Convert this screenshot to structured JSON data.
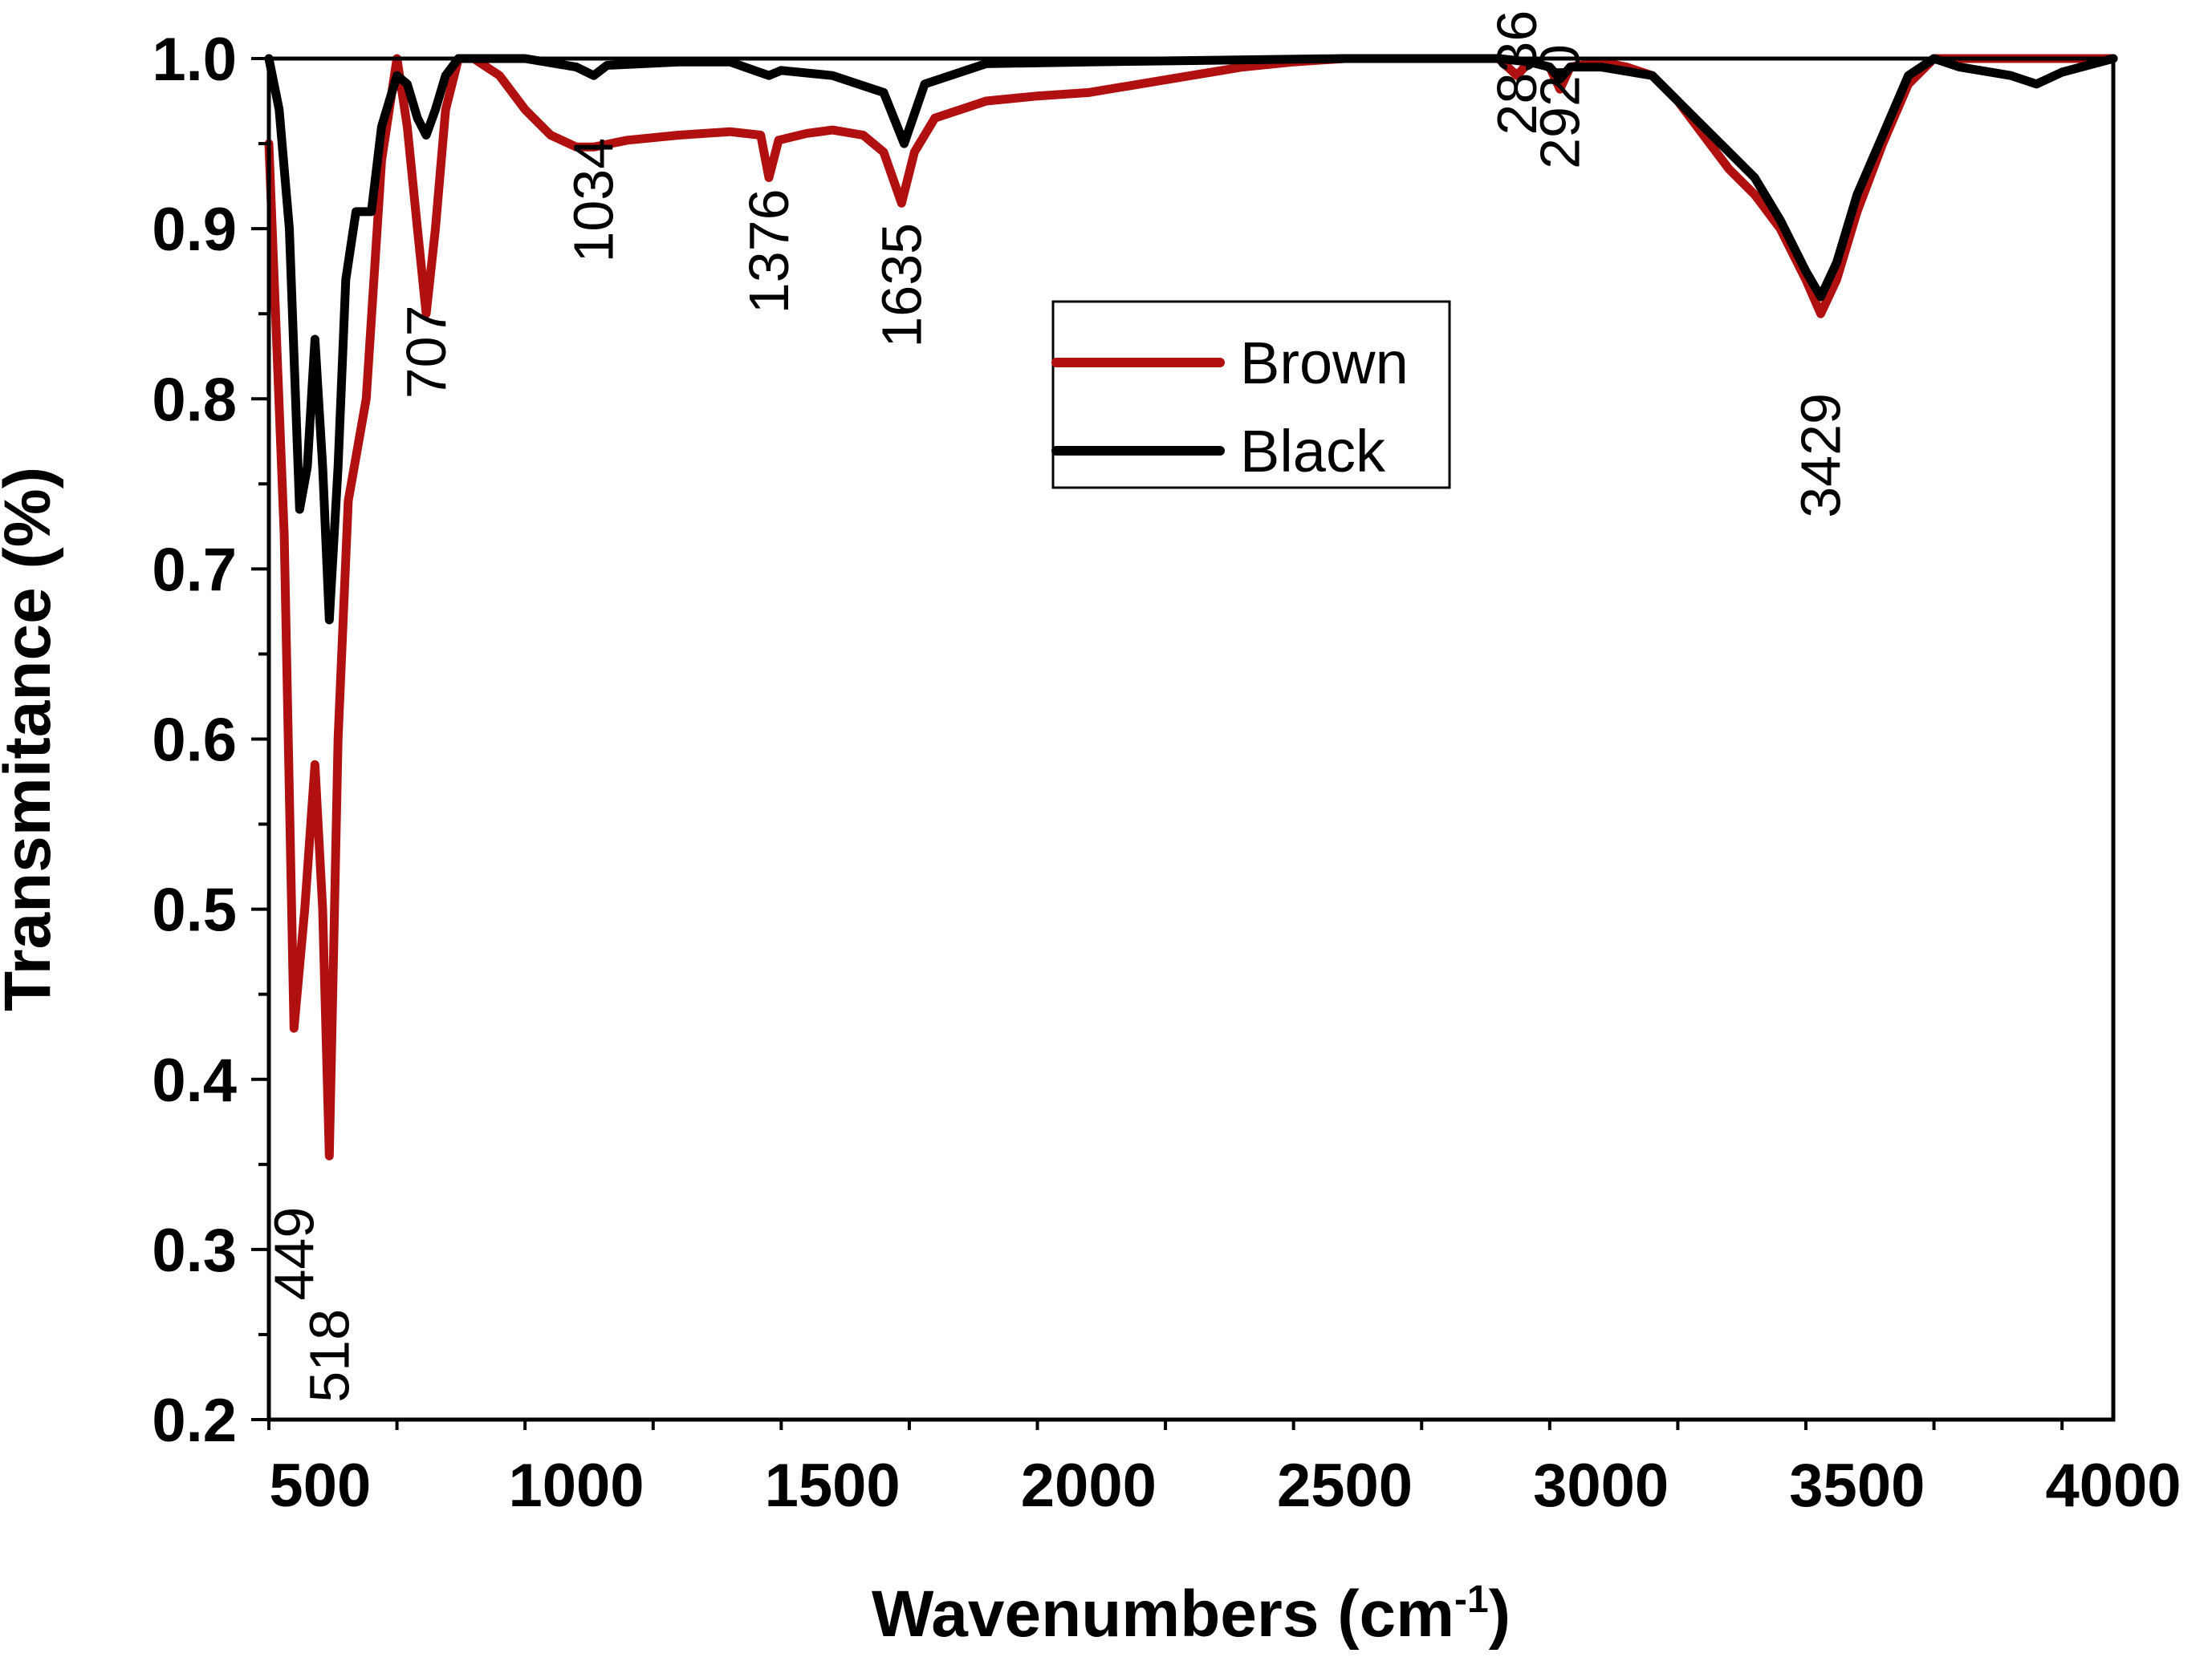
{
  "chart_data": {
    "type": "line",
    "xlabel": "Wavenumbers (cm",
    "xlabel_sup": "-1",
    "xlabel_close": ")",
    "ylabel": "Transmitance (%)",
    "xlim": [
      400,
      4000
    ],
    "ylim": [
      0.2,
      1.0
    ],
    "x_ticks": [
      500,
      1000,
      1500,
      2000,
      2500,
      3000,
      3500,
      4000
    ],
    "x_tick_labels": [
      "500",
      "1000",
      "1500",
      "2000",
      "2500",
      "3000",
      "3500",
      "4000"
    ],
    "y_ticks": [
      0.2,
      0.3,
      0.4,
      0.5,
      0.6,
      0.7,
      0.8,
      0.9,
      1.0
    ],
    "y_tick_labels": [
      "0.2",
      "0.3",
      "0.4",
      "0.5",
      "0.6",
      "0.7",
      "0.8",
      "0.9",
      "1.0"
    ],
    "legend": {
      "position": "upper-center",
      "entries": [
        "Brown",
        "Black"
      ]
    },
    "series": [
      {
        "name": "Brown",
        "color": "#b01010",
        "x": [
          400,
          430,
          449,
          470,
          490,
          505,
          518,
          535,
          555,
          590,
          620,
          650,
          670,
          690,
          707,
          725,
          745,
          770,
          800,
          850,
          900,
          950,
          1000,
          1034,
          1100,
          1200,
          1300,
          1360,
          1376,
          1395,
          1450,
          1500,
          1560,
          1600,
          1635,
          1660,
          1700,
          1800,
          1900,
          2000,
          2100,
          2200,
          2300,
          2400,
          2500,
          2600,
          2700,
          2800,
          2836,
          2860,
          2900,
          2920,
          2940,
          3000,
          3050,
          3100,
          3150,
          3200,
          3250,
          3300,
          3350,
          3400,
          3429,
          3460,
          3500,
          3550,
          3600,
          3650,
          3700,
          3800,
          3900,
          4000
        ],
        "y": [
          0.95,
          0.72,
          0.43,
          0.5,
          0.585,
          0.5,
          0.355,
          0.6,
          0.74,
          0.8,
          0.94,
          1.0,
          0.96,
          0.9,
          0.85,
          0.9,
          0.97,
          1.0,
          1.0,
          0.99,
          0.97,
          0.955,
          0.948,
          0.948,
          0.952,
          0.955,
          0.957,
          0.955,
          0.93,
          0.952,
          0.956,
          0.958,
          0.955,
          0.945,
          0.915,
          0.945,
          0.965,
          0.975,
          0.978,
          0.98,
          0.985,
          0.99,
          0.995,
          0.998,
          1.0,
          1.0,
          1.0,
          1.0,
          0.99,
          0.998,
          0.995,
          0.982,
          0.995,
          0.998,
          0.995,
          0.99,
          0.975,
          0.955,
          0.935,
          0.92,
          0.9,
          0.87,
          0.85,
          0.87,
          0.91,
          0.95,
          0.985,
          1.0,
          1.0,
          1.0,
          1.0,
          1.0
        ]
      },
      {
        "name": "Black",
        "color": "#000000",
        "x": [
          400,
          420,
          440,
          460,
          475,
          490,
          505,
          518,
          535,
          550,
          570,
          600,
          620,
          650,
          670,
          690,
          707,
          725,
          745,
          770,
          800,
          900,
          1000,
          1034,
          1060,
          1200,
          1300,
          1376,
          1400,
          1500,
          1550,
          1600,
          1640,
          1680,
          1800,
          2000,
          2500,
          2800,
          2860,
          2900,
          2920,
          2940,
          3000,
          3100,
          3150,
          3200,
          3250,
          3300,
          3350,
          3400,
          3429,
          3460,
          3500,
          3550,
          3600,
          3650,
          3700,
          3800,
          3850,
          3900,
          4000
        ],
        "y": [
          1.0,
          0.97,
          0.9,
          0.735,
          0.76,
          0.835,
          0.76,
          0.67,
          0.76,
          0.87,
          0.91,
          0.91,
          0.96,
          0.99,
          0.985,
          0.965,
          0.955,
          0.97,
          0.99,
          1.0,
          1.0,
          1.0,
          0.995,
          0.99,
          0.996,
          0.998,
          0.998,
          0.99,
          0.993,
          0.99,
          0.985,
          0.98,
          0.95,
          0.985,
          0.997,
          0.998,
          1.0,
          1.0,
          0.998,
          0.995,
          0.988,
          0.995,
          0.995,
          0.99,
          0.975,
          0.96,
          0.945,
          0.93,
          0.905,
          0.875,
          0.86,
          0.88,
          0.92,
          0.955,
          0.99,
          1.0,
          0.995,
          0.99,
          0.985,
          0.992,
          1.0
        ]
      }
    ],
    "annotations": [
      {
        "text": "449",
        "x": 449,
        "y": 0.27
      },
      {
        "text": "518",
        "x": 518,
        "y": 0.21
      },
      {
        "text": "707",
        "x": 707,
        "y": 0.8
      },
      {
        "text": "1034",
        "x": 1034,
        "y": 0.88
      },
      {
        "text": "1376",
        "x": 1376,
        "y": 0.85
      },
      {
        "text": "1635",
        "x": 1635,
        "y": 0.83
      },
      {
        "text": "2836",
        "x": 2836,
        "y": 0.955
      },
      {
        "text": "2920",
        "x": 2920,
        "y": 0.935
      },
      {
        "text": "3429",
        "x": 3429,
        "y": 0.73
      }
    ]
  }
}
